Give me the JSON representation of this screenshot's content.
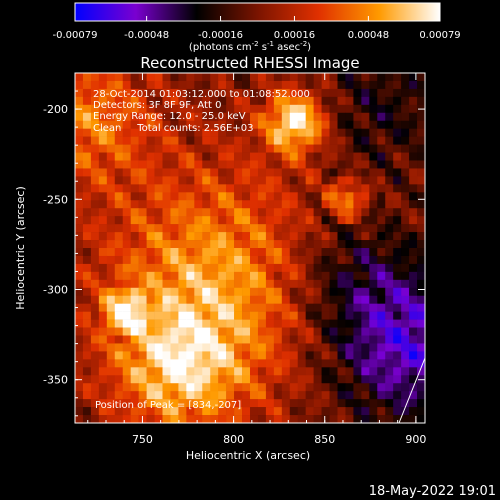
{
  "chart_data": {
    "type": "heatmap",
    "title": "Reconstructed RHESSI Image",
    "xlabel": "Heliocentric X (arcsec)",
    "ylabel": "Heliocentric Y (arcsec)",
    "xlim": [
      713,
      905
    ],
    "ylim": [
      -374,
      -180
    ],
    "x_ticks": [
      750,
      800,
      850,
      900
    ],
    "y_ticks": [
      -200,
      -250,
      -300,
      -350
    ],
    "colorbar": {
      "range": [
        -0.00079,
        0.00079
      ],
      "ticks": [
        "-0.00079",
        "-0.00048",
        "-0.00016",
        "0.00016",
        "0.00048",
        "0.00079"
      ],
      "tick_values": [
        -0.00079,
        -0.00048,
        -0.00016,
        0.00016,
        0.00048,
        0.00079
      ],
      "unit_prefix": "(photons cm",
      "unit_exp1": "-2",
      "unit_mid": " s",
      "unit_exp2": "-1",
      "unit_mid2": " asec",
      "unit_exp3": "-2",
      "unit_suffix": ")",
      "colors": [
        "#0000ff",
        "#7a00d0",
        "#000000",
        "#7a1400",
        "#e03000",
        "#ff9a00",
        "#ffffff"
      ]
    },
    "annotations": [
      "28-Oct-2014 01:03:12.000 to 01:08:52.000",
      "Detectors: 3F 8F 9F, Att 0",
      "Energy Range: 12.0 - 25.0 keV",
      "Clean     Total counts: 2.56E+03"
    ],
    "peak_label": "Position of Peak = [834,-207]",
    "peak": [
      834,
      -207
    ],
    "features": [
      {
        "x": 834,
        "y": -207,
        "amp": 1.0,
        "w": 12
      },
      {
        "x": 790,
        "y": -295,
        "amp": 0.7,
        "w": 45
      },
      {
        "x": 740,
        "y": -312,
        "amp": 0.85,
        "w": 7
      },
      {
        "x": 863,
        "y": -250,
        "amp": 0.7,
        "w": 7
      },
      {
        "x": 720,
        "y": -205,
        "amp": 0.55,
        "w": 25
      },
      {
        "x": 770,
        "y": -345,
        "amp": 0.65,
        "w": 25
      },
      {
        "x": 895,
        "y": -330,
        "amp": -0.75,
        "w": 30
      },
      {
        "x": 860,
        "y": -290,
        "amp": -0.35,
        "w": 25
      },
      {
        "x": 880,
        "y": -200,
        "amp": -0.3,
        "w": 25
      }
    ]
  },
  "timestamp": "18-May-2022 19:01"
}
